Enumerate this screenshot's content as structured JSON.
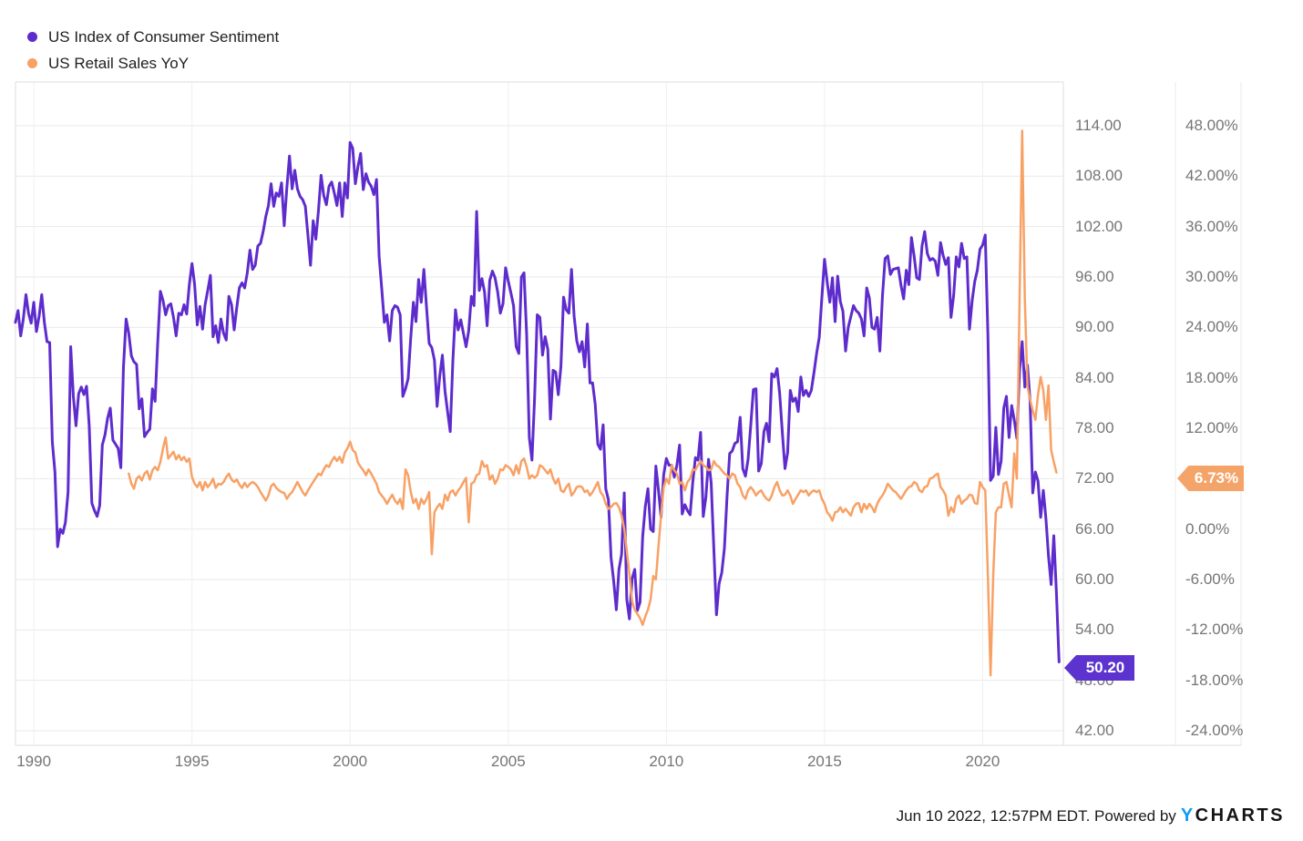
{
  "legend": {
    "items": [
      {
        "label": "US Index of Consumer Sentiment",
        "color": "#5e2ccd"
      },
      {
        "label": "US Retail Sales YoY",
        "color": "#f8a165"
      }
    ]
  },
  "badges": {
    "sentiment": {
      "text": "50.20",
      "bg": "#5c33cf"
    },
    "retail": {
      "text": "6.73%",
      "bg": "#f5a469"
    }
  },
  "footer": {
    "text": "Jun 10 2022, 12:57PM EDT. Powered by",
    "logo_y": "Y",
    "logo_rest": "CHARTS"
  },
  "chart_data": {
    "type": "line",
    "title": "",
    "grid": true,
    "legend_position": "top-left",
    "x_axis": {
      "ticks": [
        1990,
        1995,
        2000,
        2005,
        2010,
        2015,
        2020
      ],
      "labels": [
        "1990",
        "1995",
        "2000",
        "2005",
        "2010",
        "2015",
        "2020"
      ],
      "range": [
        1989.42,
        2022.55
      ]
    },
    "y_axis_left": {
      "title": "US Index of Consumer Sentiment",
      "ticks": [
        114,
        108,
        102,
        96,
        90,
        84,
        78,
        72,
        66,
        60,
        54,
        48,
        42
      ],
      "labels": [
        "114.00",
        "108.00",
        "102.00",
        "96.00",
        "90.00",
        "84.00",
        "78.00",
        "72.00",
        "66.00",
        "60.00",
        "54.00",
        "48.00",
        "42.00"
      ],
      "range": [
        40,
        119.2
      ]
    },
    "y_axis_right": {
      "title": "US Retail Sales YoY",
      "ticks": [
        48,
        42,
        36,
        30,
        24,
        18,
        12,
        0,
        -6,
        -12,
        -18,
        -24
      ],
      "labels": [
        "48.00%",
        "42.00%",
        "36.00%",
        "30.00%",
        "24.00%",
        "18.00%",
        "12.00%",
        "0.00%",
        "-6.00%",
        "-12.00%",
        "-18.00%",
        "-24.00%"
      ],
      "range": [
        -24.8,
        48.8
      ]
    },
    "latest": {
      "sentiment": 50.2,
      "retail_pct": 6.73
    },
    "series": [
      {
        "name": "US Index of Consumer Sentiment",
        "axis": "left",
        "color": "#5e2ccd",
        "stroke_width": 3,
        "start_year": 1989.4167,
        "points_per_year": 12,
        "values": [
          90.6,
          92.0,
          89.0,
          91.0,
          93.9,
          91.7,
          90.5,
          93.0,
          89.5,
          91.3,
          93.9,
          90.6,
          88.3,
          88.2,
          76.4,
          72.8,
          63.9,
          66.0,
          65.5,
          66.8,
          70.4,
          87.7,
          81.8,
          78.3,
          82.1,
          82.9,
          82.0,
          83.0,
          78.3,
          69.1,
          68.2,
          67.5,
          68.8,
          76.0,
          77.2,
          79.2,
          80.4,
          76.6,
          76.1,
          75.6,
          73.3,
          85.3,
          91.0,
          89.3,
          86.6,
          85.9,
          85.6,
          80.3,
          81.5,
          77.0,
          77.5,
          77.9,
          82.7,
          81.2,
          88.2,
          94.3,
          93.2,
          91.5,
          92.6,
          92.8,
          91.2,
          89.0,
          91.7,
          91.5,
          92.7,
          91.6,
          95.1,
          97.6,
          95.1,
          90.3,
          92.5,
          89.8,
          92.7,
          94.4,
          96.2,
          88.9,
          90.2,
          88.2,
          91.0,
          89.3,
          88.5,
          93.7,
          92.7,
          89.7,
          92.4,
          94.7,
          95.3,
          94.7,
          96.5,
          99.2,
          96.9,
          97.4,
          99.7,
          100.0,
          101.4,
          103.2,
          104.5,
          107.1,
          104.4,
          106.0,
          105.6,
          107.2,
          102.1,
          106.6,
          110.4,
          106.5,
          108.7,
          106.5,
          105.6,
          105.2,
          104.4,
          100.9,
          97.4,
          102.7,
          100.5,
          103.9,
          108.1,
          105.7,
          104.6,
          106.8,
          107.3,
          106.0,
          104.5,
          107.2,
          103.2,
          107.2,
          105.4,
          112.0,
          111.3,
          107.1,
          109.2,
          110.7,
          106.4,
          108.3,
          107.3,
          106.8,
          105.8,
          107.6,
          98.4,
          94.7,
          90.6,
          91.5,
          88.4,
          92.0,
          92.6,
          92.4,
          91.5,
          81.8,
          82.7,
          83.9,
          88.8,
          93.0,
          90.7,
          95.7,
          93.0,
          96.9,
          92.4,
          88.1,
          87.6,
          86.1,
          80.6,
          84.2,
          86.7,
          82.4,
          79.9,
          77.6,
          86.0,
          92.1,
          89.7,
          90.9,
          89.3,
          87.7,
          89.6,
          93.7,
          92.6,
          103.8,
          94.4,
          95.8,
          94.2,
          90.2,
          95.6,
          96.7,
          95.9,
          94.2,
          91.7,
          92.8,
          97.1,
          95.5,
          94.1,
          92.6,
          87.7,
          86.9,
          96.0,
          96.5,
          89.1,
          76.9,
          74.2,
          81.6,
          91.5,
          91.2,
          86.7,
          88.9,
          87.4,
          79.1,
          84.9,
          84.7,
          82.0,
          85.4,
          93.6,
          92.1,
          91.7,
          96.9,
          91.3,
          88.4,
          87.1,
          88.3,
          85.3,
          90.4,
          83.4,
          83.4,
          80.9,
          76.1,
          75.5,
          78.4,
          70.8,
          69.5,
          62.6,
          59.8,
          56.4,
          61.2,
          63.0,
          70.3,
          57.6,
          55.3,
          60.1,
          61.2,
          56.3,
          57.3,
          65.1,
          68.7,
          70.8,
          66.0,
          65.7,
          73.5,
          70.6,
          67.4,
          72.5,
          74.4,
          73.6,
          73.6,
          72.2,
          73.6,
          76.0,
          67.8,
          68.9,
          68.2,
          67.7,
          71.6,
          74.5,
          74.2,
          77.5,
          67.5,
          69.8,
          74.3,
          71.5,
          63.7,
          55.8,
          59.5,
          60.8,
          63.7,
          69.9,
          75.0,
          75.3,
          76.2,
          76.4,
          79.3,
          73.2,
          72.3,
          74.3,
          78.3,
          82.6,
          82.7,
          72.9,
          73.8,
          77.6,
          78.6,
          76.4,
          84.5,
          84.1,
          85.1,
          82.1,
          77.5,
          73.2,
          75.1,
          82.5,
          81.2,
          81.6,
          80.0,
          84.1,
          81.9,
          82.5,
          81.8,
          82.5,
          84.6,
          86.9,
          88.8,
          93.6,
          98.1,
          95.4,
          93.0,
          95.9,
          90.7,
          96.1,
          93.1,
          91.9,
          87.2,
          90.0,
          91.3,
          92.6,
          92.0,
          91.7,
          91.0,
          89.0,
          94.7,
          93.5,
          90.0,
          89.8,
          91.2,
          87.2,
          93.8,
          98.2,
          98.5,
          96.3,
          96.9,
          97.0,
          97.1,
          95.0,
          93.4,
          96.8,
          95.1,
          100.7,
          98.5,
          95.9,
          95.7,
          99.7,
          101.4,
          98.8,
          98.0,
          98.2,
          97.9,
          96.2,
          100.1,
          98.6,
          97.5,
          98.3,
          91.2,
          93.8,
          98.4,
          97.2,
          100.0,
          98.2,
          98.4,
          89.8,
          93.2,
          95.5,
          96.8,
          99.3,
          99.8,
          101.0,
          89.1,
          71.8,
          72.3,
          78.1,
          72.5,
          74.1,
          80.4,
          81.8,
          76.9,
          80.7,
          79.0,
          76.8,
          84.9,
          88.3,
          82.9,
          85.5,
          81.2,
          70.3,
          72.8,
          71.7,
          67.4,
          70.6,
          67.2,
          62.8,
          59.4,
          65.2,
          58.4,
          50.2
        ]
      },
      {
        "name": "US Retail Sales YoY",
        "axis": "right",
        "color": "#f8a165",
        "stroke_width": 2.5,
        "start_year": 1993.0,
        "points_per_year": 12,
        "values": [
          6.6,
          5.4,
          4.8,
          6.0,
          6.3,
          5.8,
          6.6,
          6.9,
          5.9,
          7.0,
          7.4,
          7.0,
          8.0,
          9.6,
          10.9,
          8.4,
          8.8,
          9.2,
          8.3,
          8.8,
          8.2,
          8.6,
          8.0,
          8.4,
          6.2,
          5.4,
          5.0,
          5.6,
          4.6,
          5.6,
          5.0,
          5.4,
          6.0,
          4.9,
          5.4,
          5.3,
          5.6,
          6.2,
          6.6,
          5.9,
          5.6,
          5.9,
          5.3,
          4.9,
          5.5,
          5.0,
          5.4,
          5.6,
          5.4,
          5.0,
          4.4,
          3.9,
          3.4,
          4.0,
          5.1,
          5.4,
          4.9,
          4.6,
          4.4,
          4.3,
          3.6,
          4.1,
          4.4,
          5.0,
          5.6,
          5.0,
          4.4,
          4.0,
          4.6,
          5.1,
          5.6,
          6.1,
          6.6,
          6.4,
          7.1,
          7.6,
          7.4,
          8.1,
          8.6,
          8.1,
          8.6,
          7.9,
          9.1,
          9.6,
          10.4,
          9.4,
          9.1,
          7.9,
          7.4,
          7.0,
          6.4,
          7.1,
          6.6,
          6.0,
          5.4,
          4.4,
          4.0,
          3.6,
          3.0,
          3.6,
          4.1,
          3.4,
          3.0,
          3.6,
          2.4,
          7.1,
          6.4,
          4.4,
          3.1,
          3.6,
          2.4,
          3.6,
          3.0,
          3.6,
          4.4,
          -3.0,
          2.0,
          2.6,
          3.0,
          2.4,
          4.1,
          3.4,
          4.4,
          4.6,
          4.0,
          4.6,
          5.0,
          5.6,
          6.1,
          0.8,
          5.4,
          5.6,
          6.4,
          6.6,
          8.1,
          7.4,
          7.6,
          5.9,
          6.4,
          5.4,
          6.0,
          7.1,
          7.0,
          7.6,
          7.4,
          7.1,
          6.4,
          7.6,
          6.6,
          8.1,
          8.4,
          7.4,
          6.0,
          6.4,
          6.1,
          6.4,
          7.6,
          7.4,
          7.0,
          6.6,
          7.1,
          6.0,
          5.4,
          6.0,
          4.6,
          4.4,
          5.0,
          5.4,
          4.0,
          4.4,
          5.0,
          5.1,
          5.0,
          4.4,
          4.6,
          4.0,
          4.4,
          5.0,
          5.6,
          4.4,
          4.0,
          3.0,
          2.4,
          2.6,
          3.0,
          3.1,
          2.6,
          1.6,
          0.0,
          -2.6,
          -5.4,
          -8.6,
          -9.6,
          -10.1,
          -10.6,
          -11.4,
          -10.4,
          -9.6,
          -8.4,
          -5.6,
          -6.0,
          -2.0,
          1.6,
          5.0,
          6.0,
          5.4,
          7.6,
          7.0,
          6.6,
          5.4,
          5.6,
          4.6,
          5.6,
          6.0,
          7.1,
          7.0,
          7.6,
          8.1,
          7.6,
          7.4,
          7.0,
          7.1,
          8.1,
          7.6,
          7.4,
          7.0,
          6.6,
          6.4,
          6.0,
          6.6,
          6.4,
          5.4,
          5.0,
          4.0,
          3.6,
          4.6,
          5.0,
          4.6,
          4.0,
          4.4,
          4.6,
          4.0,
          3.6,
          3.4,
          4.0,
          5.0,
          5.6,
          4.6,
          4.0,
          4.1,
          4.6,
          4.0,
          3.0,
          3.6,
          4.1,
          4.6,
          4.4,
          4.6,
          4.0,
          4.4,
          4.6,
          4.4,
          4.6,
          3.6,
          3.0,
          2.0,
          1.6,
          1.0,
          2.0,
          2.1,
          2.6,
          2.0,
          2.4,
          2.0,
          1.6,
          2.6,
          3.0,
          3.1,
          2.0,
          3.0,
          2.4,
          3.0,
          2.6,
          2.0,
          3.0,
          3.6,
          4.0,
          4.6,
          5.4,
          5.0,
          4.6,
          4.4,
          4.0,
          3.6,
          4.1,
          4.6,
          5.0,
          5.1,
          5.6,
          5.4,
          4.6,
          4.4,
          5.0,
          5.1,
          6.0,
          6.1,
          6.4,
          6.6,
          5.0,
          4.6,
          4.0,
          1.6,
          2.6,
          2.0,
          3.6,
          4.0,
          3.0,
          3.4,
          3.6,
          4.1,
          4.0,
          3.1,
          3.0,
          5.6,
          5.0,
          4.6,
          -5.6,
          -17.4,
          -5.6,
          2.0,
          2.6,
          2.6,
          5.4,
          5.6,
          4.0,
          2.6,
          9.0,
          6.0,
          27.0,
          47.4,
          27.5,
          17.0,
          15.4,
          14.1,
          13.0,
          16.0,
          18.1,
          16.5,
          13.0,
          17.1,
          9.4,
          8.0,
          6.73
        ]
      }
    ]
  }
}
